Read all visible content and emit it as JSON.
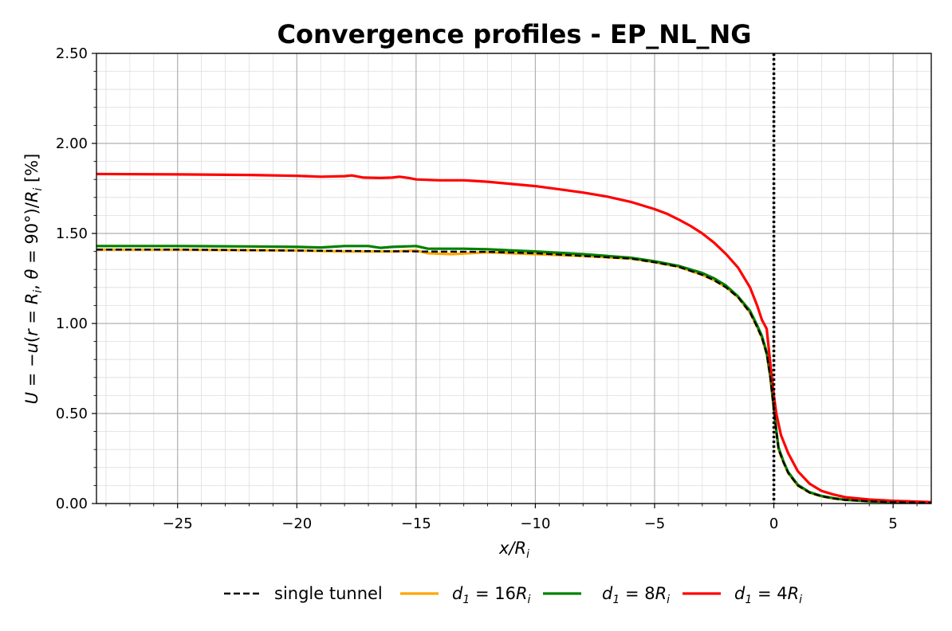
{
  "chart_data": {
    "type": "line",
    "title": "Convergence profiles - EP_NL_NG",
    "xlabel": "x/R_i",
    "ylabel": "U = −u(r = R_i, θ = 90°)/R_i [%]",
    "xlim": [
      -28.4,
      6.6
    ],
    "ylim": [
      0,
      2.5
    ],
    "xticks": [
      -25,
      -20,
      -15,
      -10,
      -5,
      0,
      5
    ],
    "xtick_labels": [
      "−25",
      "−20",
      "−15",
      "−10",
      "−5",
      "0",
      "5"
    ],
    "yticks": [
      0,
      0.5,
      1.0,
      1.5,
      2.0,
      2.5
    ],
    "ytick_labels": [
      "0.00",
      "0.50",
      "1.00",
      "1.50",
      "2.00",
      "2.50"
    ],
    "grid": true,
    "minor_grid": true,
    "legend_position": "bottom-center",
    "vline": {
      "x": 0,
      "style": "dotted",
      "color": "#000000"
    },
    "series": [
      {
        "name": "single tunnel",
        "color": "#000000",
        "style": "dashed",
        "x": [
          -28.4,
          -25,
          -20,
          -15,
          -12,
          -10,
          -8,
          -6,
          -5,
          -4,
          -3,
          -2.5,
          -2,
          -1.5,
          -1,
          -0.7,
          -0.5,
          -0.3,
          -0.15,
          0,
          0.1,
          0.2,
          0.4,
          0.6,
          1.0,
          1.5,
          2.0,
          2.5,
          3.0,
          4.0,
          5.0,
          6.6
        ],
        "y": [
          1.41,
          1.41,
          1.405,
          1.4,
          1.398,
          1.39,
          1.375,
          1.36,
          1.34,
          1.315,
          1.27,
          1.24,
          1.2,
          1.145,
          1.06,
          0.98,
          0.92,
          0.83,
          0.7,
          0.52,
          0.4,
          0.3,
          0.23,
          0.17,
          0.1,
          0.06,
          0.04,
          0.028,
          0.02,
          0.012,
          0.008,
          0.004
        ]
      },
      {
        "name": "d_1 = 16R_i",
        "color": "#ffa500",
        "style": "solid",
        "x": [
          -28.4,
          -25,
          -20,
          -18,
          -16,
          -15,
          -14.5,
          -13.5,
          -12,
          -10,
          -8,
          -6,
          -5,
          -4,
          -3,
          -2.5,
          -2,
          -1.5,
          -1,
          -0.7,
          -0.5,
          -0.3,
          -0.15,
          0,
          0.1,
          0.2,
          0.4,
          0.6,
          1.0,
          1.5,
          2.0,
          2.5,
          3.0,
          4.0,
          5.0,
          6.6
        ],
        "y": [
          1.41,
          1.41,
          1.405,
          1.4,
          1.4,
          1.405,
          1.39,
          1.385,
          1.395,
          1.385,
          1.375,
          1.36,
          1.34,
          1.315,
          1.27,
          1.24,
          1.2,
          1.145,
          1.06,
          0.98,
          0.92,
          0.83,
          0.7,
          0.52,
          0.4,
          0.3,
          0.23,
          0.17,
          0.1,
          0.06,
          0.04,
          0.028,
          0.02,
          0.012,
          0.008,
          0.004
        ]
      },
      {
        "name": "d_1 = 8R_i",
        "color": "#008000",
        "style": "solid",
        "x": [
          -28.4,
          -25,
          -22,
          -20,
          -19,
          -18,
          -17,
          -16.5,
          -16,
          -15,
          -14.5,
          -13,
          -12,
          -10,
          -8,
          -6,
          -5,
          -4,
          -3,
          -2.5,
          -2,
          -1.5,
          -1,
          -0.7,
          -0.5,
          -0.3,
          -0.15,
          0,
          0.1,
          0.2,
          0.4,
          0.6,
          1.0,
          1.5,
          2.0,
          2.5,
          3.0,
          4.0,
          5.0,
          6.6
        ],
        "y": [
          1.43,
          1.43,
          1.428,
          1.425,
          1.422,
          1.43,
          1.43,
          1.42,
          1.425,
          1.43,
          1.415,
          1.415,
          1.412,
          1.4,
          1.385,
          1.365,
          1.345,
          1.32,
          1.28,
          1.25,
          1.21,
          1.15,
          1.07,
          0.99,
          0.93,
          0.84,
          0.71,
          0.53,
          0.41,
          0.31,
          0.235,
          0.175,
          0.105,
          0.063,
          0.042,
          0.03,
          0.021,
          0.013,
          0.009,
          0.005
        ]
      },
      {
        "name": "d_1 = 4R_i",
        "color": "#ff0000",
        "style": "solid",
        "x": [
          -28.4,
          -25,
          -22,
          -20,
          -19,
          -18,
          -17.7,
          -17.2,
          -16.5,
          -16,
          -15.7,
          -15.3,
          -15,
          -14,
          -13,
          -12,
          -11,
          -10,
          -9,
          -8,
          -7,
          -6,
          -5,
          -4.5,
          -4,
          -3.5,
          -3,
          -2.5,
          -2,
          -1.5,
          -1,
          -0.7,
          -0.5,
          -0.3,
          -0.15,
          0,
          0.1,
          0.3,
          0.6,
          1.0,
          1.5,
          2.0,
          2.5,
          3.0,
          4.0,
          5.0,
          6.6
        ],
        "y": [
          1.83,
          1.828,
          1.825,
          1.82,
          1.815,
          1.818,
          1.822,
          1.81,
          1.808,
          1.81,
          1.815,
          1.808,
          1.8,
          1.795,
          1.795,
          1.787,
          1.775,
          1.763,
          1.745,
          1.727,
          1.705,
          1.675,
          1.635,
          1.61,
          1.578,
          1.542,
          1.5,
          1.448,
          1.385,
          1.31,
          1.2,
          1.1,
          1.02,
          0.97,
          0.78,
          0.6,
          0.5,
          0.38,
          0.28,
          0.18,
          0.11,
          0.07,
          0.05,
          0.035,
          0.022,
          0.015,
          0.008
        ]
      }
    ]
  }
}
